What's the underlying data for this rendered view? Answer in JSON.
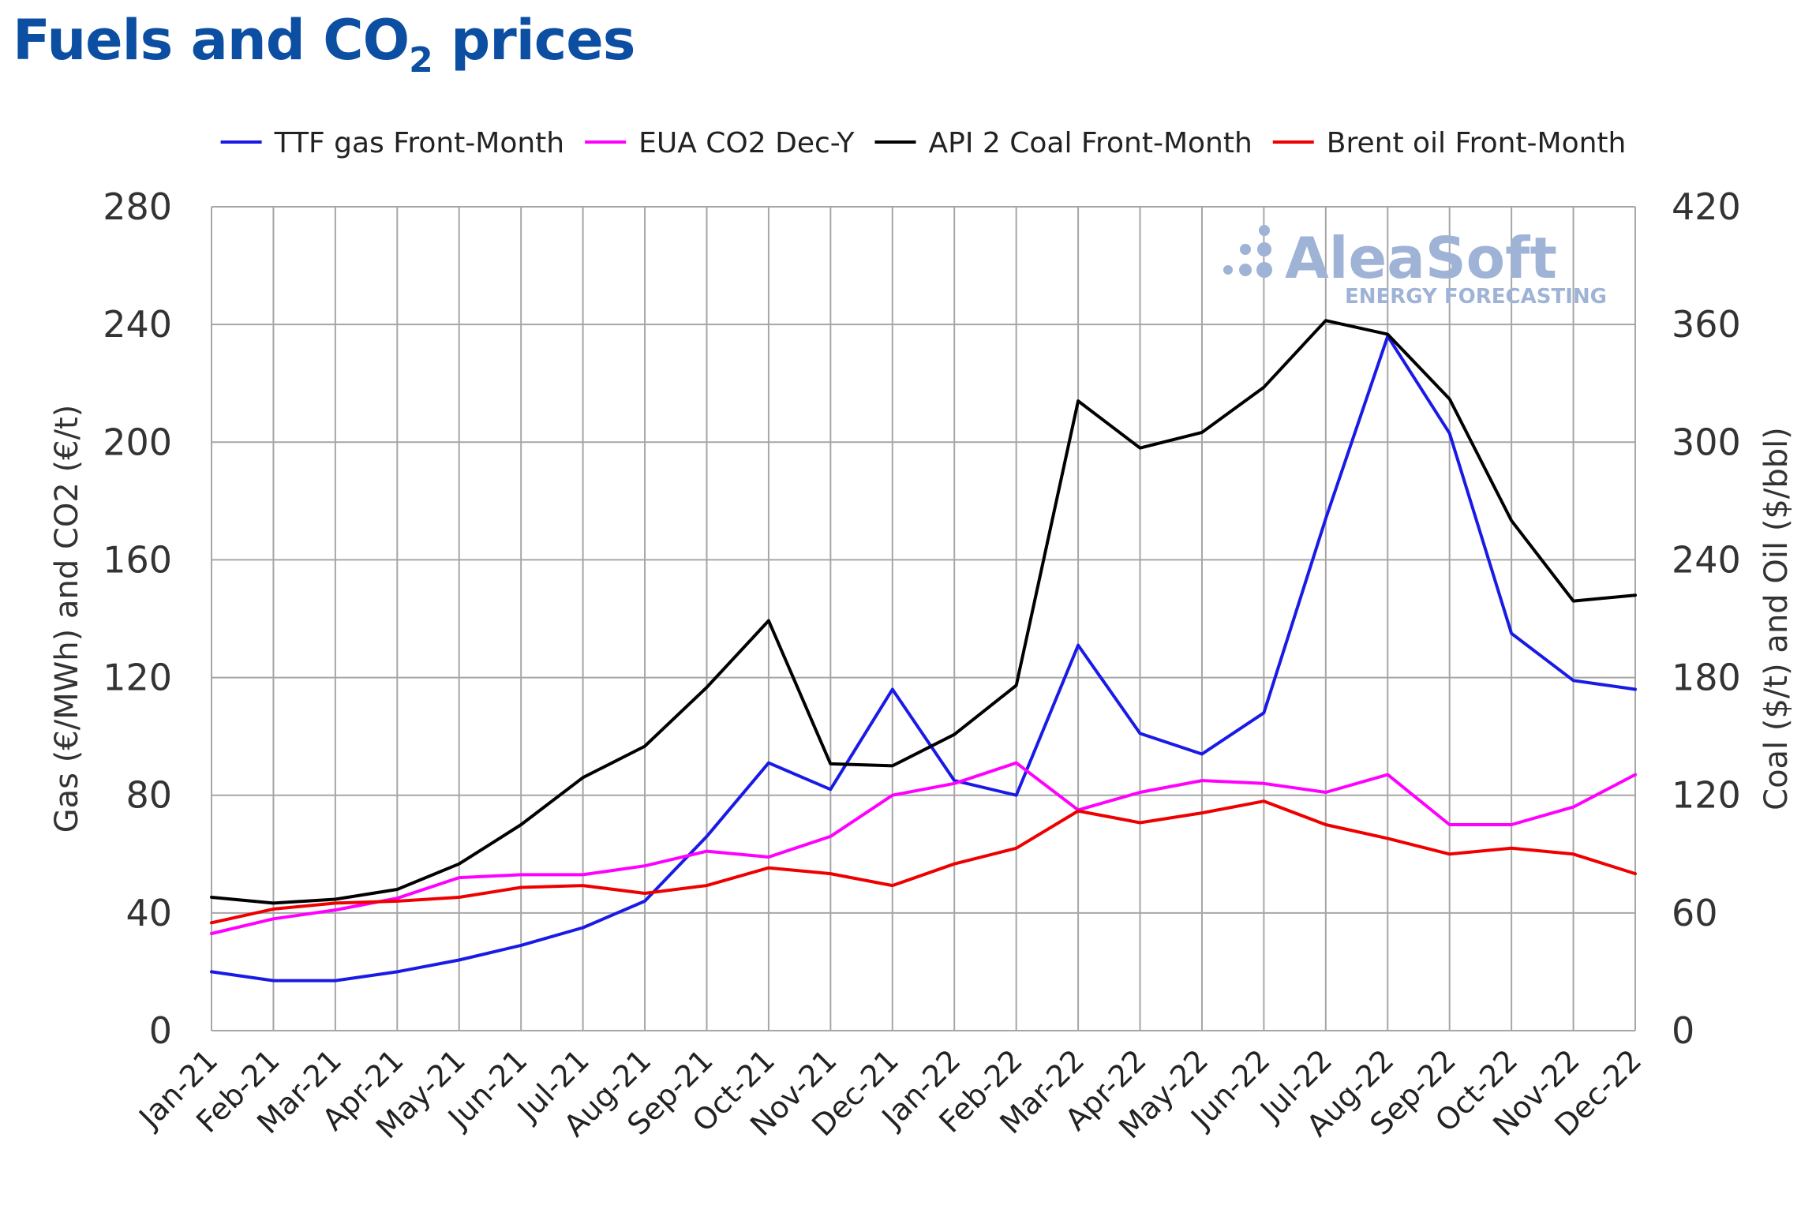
{
  "title": {
    "main": "Fuels and CO",
    "sub": "2",
    "tail": " prices"
  },
  "watermark": {
    "name": "AleaSoft",
    "tagline": "ENERGY FORECASTING",
    "color": "#9fb3d6"
  },
  "chart_data": {
    "type": "line",
    "categories": [
      "Jan-21",
      "Feb-21",
      "Mar-21",
      "Apr-21",
      "May-21",
      "Jun-21",
      "Jul-21",
      "Aug-21",
      "Sep-21",
      "Oct-21",
      "Nov-21",
      "Dec-21",
      "Jan-22",
      "Feb-22",
      "Mar-22",
      "Apr-22",
      "May-22",
      "Jun-22",
      "Jul-22",
      "Aug-22",
      "Sep-22",
      "Oct-22",
      "Nov-22",
      "Dec-22"
    ],
    "y_left": {
      "label": "Gas (€/MWh) and CO2 (€/t)",
      "ylim": [
        0,
        280
      ],
      "ticks": [
        "0",
        "40",
        "80",
        "120",
        "160",
        "200",
        "240",
        "280"
      ]
    },
    "y_right": {
      "label": "Coal ($/t) and Oil ($/bbl)",
      "ylim": [
        0,
        420
      ],
      "ticks": [
        "0",
        "60",
        "120",
        "180",
        "240",
        "300",
        "360",
        "420"
      ]
    },
    "legend_position": "top",
    "grid": true,
    "series": [
      {
        "name": "TTF gas Front-Month",
        "axis": "left",
        "color": "#1a1ae6",
        "values": [
          20,
          17,
          17,
          20,
          24,
          29,
          35,
          44,
          66,
          91,
          82,
          116,
          85,
          80,
          131,
          101,
          94,
          108,
          174,
          236,
          203,
          135,
          119,
          116
        ]
      },
      {
        "name": "EUA CO2 Dec-Y",
        "axis": "left",
        "color": "#ff00ff",
        "values": [
          33,
          38,
          41,
          45,
          52,
          53,
          53,
          56,
          61,
          59,
          66,
          80,
          84,
          91,
          75,
          81,
          85,
          84,
          81,
          87,
          70,
          70,
          76,
          87
        ]
      },
      {
        "name": "API 2 Coal Front-Month",
        "axis": "right",
        "color": "#000000",
        "values": [
          68,
          65,
          67,
          72,
          85,
          105,
          129,
          145,
          175,
          209,
          136,
          135,
          151,
          176,
          321,
          297,
          305,
          328,
          362,
          355,
          322,
          260,
          219,
          222
        ]
      },
      {
        "name": "Brent oil Front-Month",
        "axis": "right",
        "color": "#ee0000",
        "values": [
          55,
          62,
          65,
          66,
          68,
          73,
          74,
          70,
          74,
          83,
          80,
          74,
          85,
          93,
          112,
          106,
          111,
          117,
          105,
          98,
          90,
          93,
          90,
          80
        ]
      }
    ]
  }
}
